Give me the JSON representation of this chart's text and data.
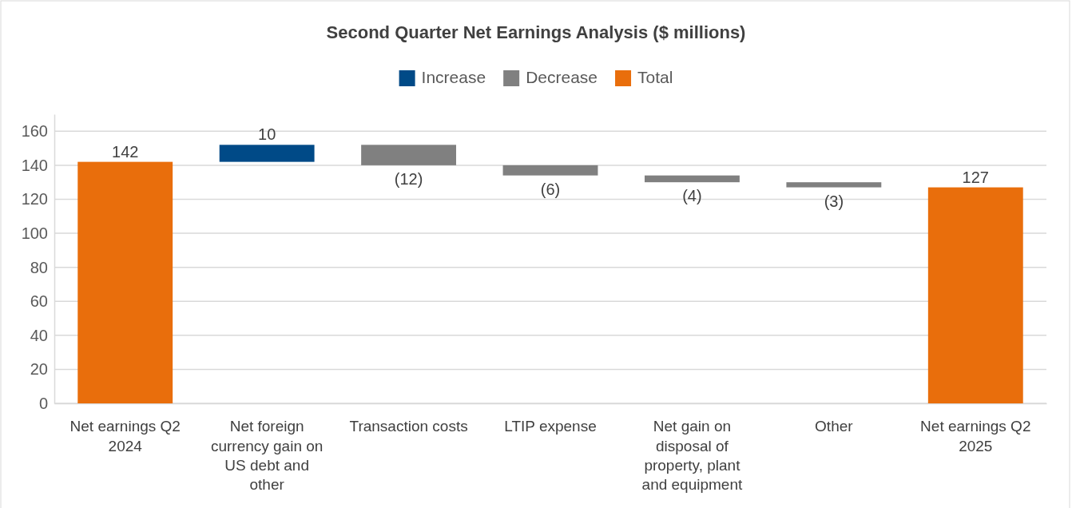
{
  "chart_data": {
    "type": "bar",
    "title": "Second Quarter Net Earnings Analysis ($ millions)",
    "categories": [
      "Net earnings Q2 2024",
      "Net foreign currency gain on US debt and other",
      "Transaction costs",
      "LTIP expense",
      "Net gain on disposal of property, plant and equipment",
      "Other",
      "Net earnings Q2 2025"
    ],
    "series": [
      {
        "name": "Increase",
        "color": "#004a87",
        "values": [
          null,
          10,
          null,
          null,
          null,
          null,
          null
        ],
        "base": [
          null,
          142,
          null,
          null,
          null,
          null,
          null
        ],
        "value_labels": [
          null,
          "10",
          null,
          null,
          null,
          null,
          null
        ]
      },
      {
        "name": "Decrease",
        "color": "#808080",
        "values": [
          null,
          null,
          -12,
          -6,
          -4,
          -3,
          null
        ],
        "base": [
          null,
          null,
          152,
          140,
          134,
          130,
          null
        ],
        "value_labels": [
          null,
          null,
          "(12)",
          "(6)",
          "(4)",
          "(3)",
          null
        ]
      },
      {
        "name": "Total",
        "color": "#e96e0c",
        "values": [
          142,
          null,
          null,
          null,
          null,
          null,
          127
        ],
        "base": [
          0,
          null,
          null,
          null,
          null,
          null,
          0
        ],
        "value_labels": [
          "142",
          null,
          null,
          null,
          null,
          null,
          "127"
        ]
      }
    ],
    "ylim": [
      0,
      170
    ],
    "yticks": [
      0,
      20,
      40,
      60,
      80,
      100,
      120,
      140,
      160
    ],
    "grid": "y",
    "legend": "top"
  }
}
